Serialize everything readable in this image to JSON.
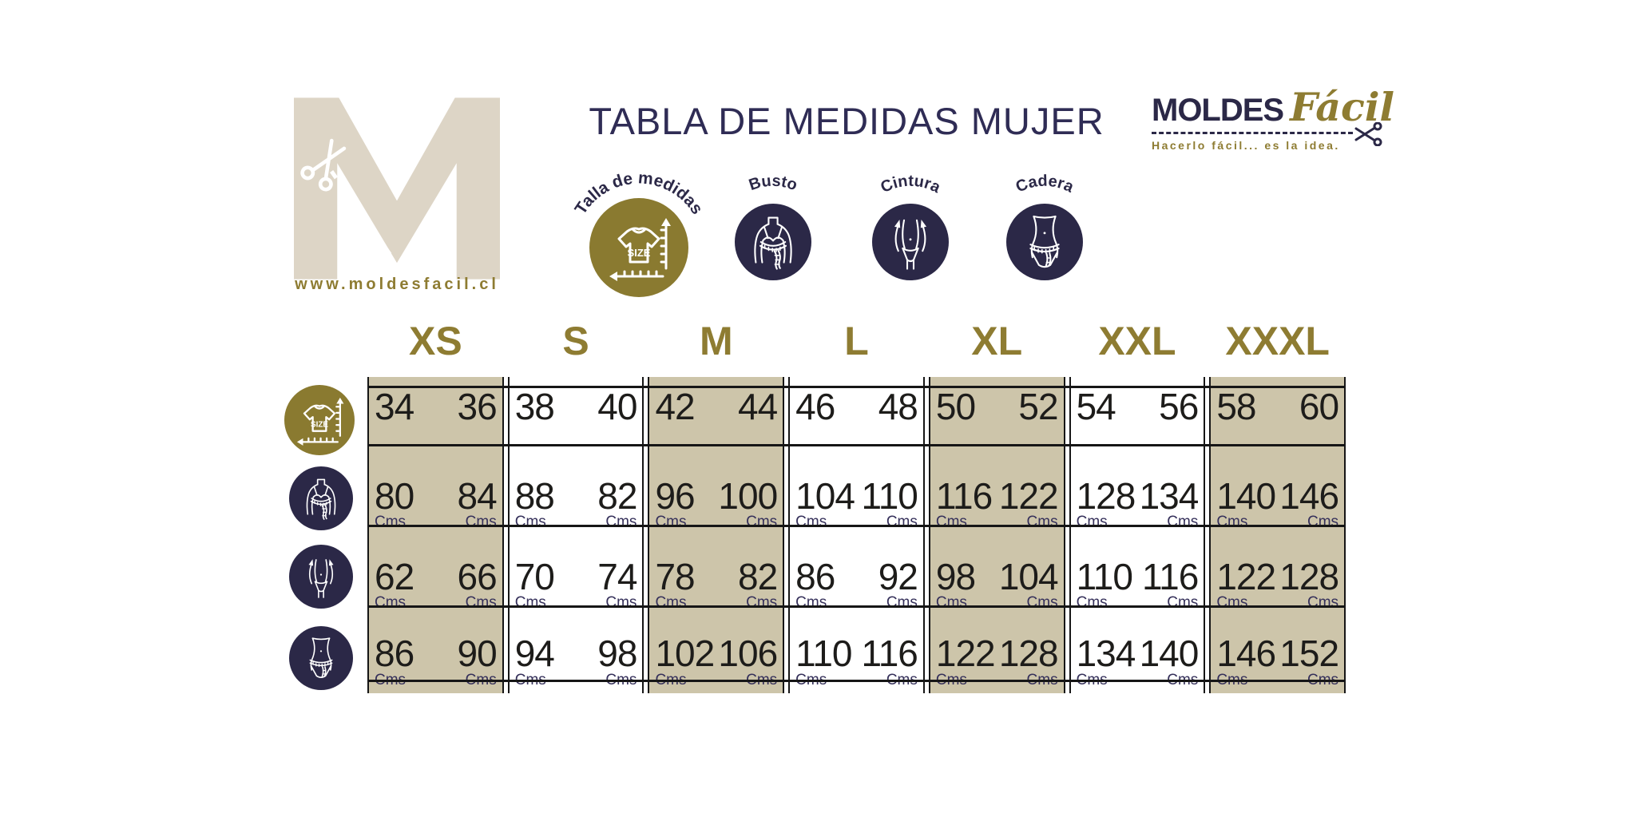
{
  "header": {
    "title": "TABLA DE MEDIDAS MUJER",
    "website": "www.moldesfacil.cl",
    "brand": {
      "name_bold": "MOLDES",
      "name_script": "Fácil",
      "tagline": "Hacerlo fácil... es la idea."
    }
  },
  "legend": {
    "items": [
      {
        "label": "Talla de medidas",
        "icon": "size-ruler-icon"
      },
      {
        "label": "Busto",
        "icon": "bust-icon"
      },
      {
        "label": "Cintura",
        "icon": "waist-icon"
      },
      {
        "label": "Cadera",
        "icon": "hip-icon"
      }
    ]
  },
  "size_chart": {
    "sizes": [
      "XS",
      "S",
      "M",
      "L",
      "XL",
      "XXL",
      "XXXL"
    ],
    "highlighted_sizes": [
      "XS",
      "M",
      "XL",
      "XXXL"
    ],
    "unit": "Cms",
    "rows": [
      {
        "id": "talla",
        "label": "Talla de medidas",
        "icon": "size-ruler-icon",
        "show_unit": false,
        "values": [
          [
            "34",
            "36"
          ],
          [
            "38",
            "40"
          ],
          [
            "42",
            "44"
          ],
          [
            "46",
            "48"
          ],
          [
            "50",
            "52"
          ],
          [
            "54",
            "56"
          ],
          [
            "58",
            "60"
          ]
        ]
      },
      {
        "id": "busto",
        "label": "Busto",
        "icon": "bust-icon",
        "show_unit": true,
        "values": [
          [
            "80",
            "84"
          ],
          [
            "88",
            "82"
          ],
          [
            "96",
            "100"
          ],
          [
            "104",
            "110"
          ],
          [
            "116",
            "122"
          ],
          [
            "128",
            "134"
          ],
          [
            "140",
            "146"
          ]
        ]
      },
      {
        "id": "cintura",
        "label": "Cintura",
        "icon": "waist-icon",
        "show_unit": true,
        "values": [
          [
            "62",
            "66"
          ],
          [
            "70",
            "74"
          ],
          [
            "78",
            "82"
          ],
          [
            "86",
            "92"
          ],
          [
            "98",
            "104"
          ],
          [
            "110",
            "116"
          ],
          [
            "122",
            "128"
          ]
        ]
      },
      {
        "id": "cadera",
        "label": "Cadera",
        "icon": "hip-icon",
        "show_unit": true,
        "values": [
          [
            "86",
            "90"
          ],
          [
            "94",
            "98"
          ],
          [
            "102",
            "106"
          ],
          [
            "110",
            "116"
          ],
          [
            "122",
            "128"
          ],
          [
            "134",
            "140"
          ],
          [
            "146",
            "152"
          ]
        ]
      }
    ]
  },
  "colors": {
    "gold": "#8e7c32",
    "navy": "#2b2847",
    "band_beige": "#cdc5aa",
    "logo_beige": "#ddd5c6",
    "number_black": "#1d1c1a"
  }
}
